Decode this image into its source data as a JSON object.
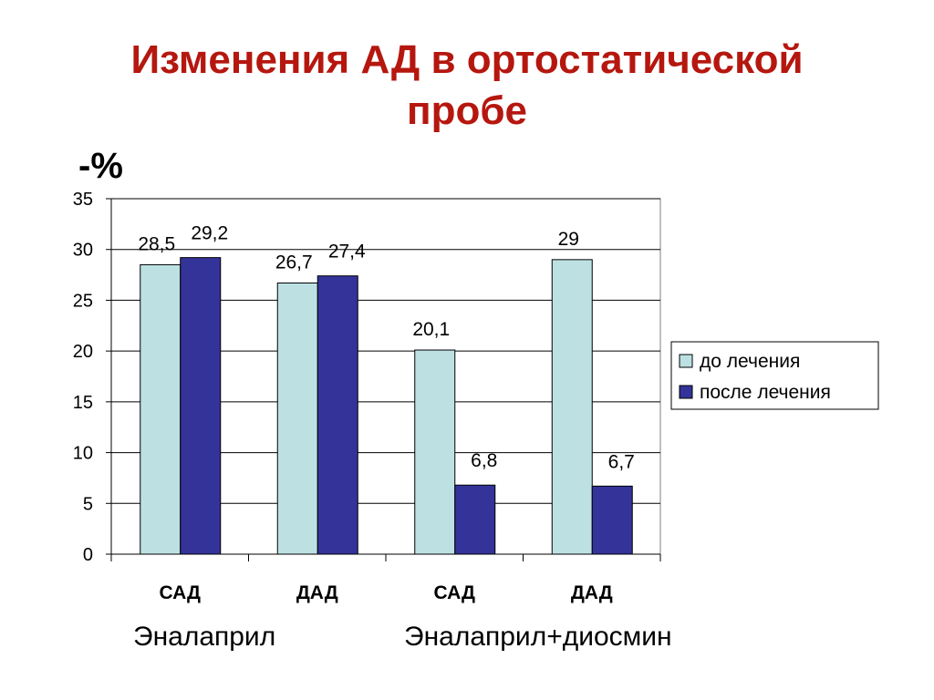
{
  "title": {
    "line1": "Изменения АД в ортостатической",
    "line2": "пробе"
  },
  "unit_label": "-%",
  "chart_data": {
    "type": "bar",
    "categories": [
      "САД",
      "ДАД",
      "САД",
      "ДАД"
    ],
    "groups": [
      {
        "label": "Эналаприл",
        "categories": [
          "САД",
          "ДАД"
        ]
      },
      {
        "label": "Эналаприл+диосмин",
        "categories": [
          "САД",
          "ДАД"
        ]
      }
    ],
    "series": [
      {
        "name": "до лечения",
        "values": [
          28.5,
          26.7,
          20.1,
          29
        ],
        "labels": [
          "28,5",
          "26,7",
          "20,1",
          "29"
        ],
        "color": "#bde1e3"
      },
      {
        "name": "после лечения",
        "values": [
          29.2,
          27.4,
          6.8,
          6.7
        ],
        "labels": [
          "29,2",
          "27,4",
          "6,8",
          "6,7"
        ],
        "color": "#333399"
      }
    ],
    "ylim": [
      0,
      35
    ],
    "yticks": [
      "0",
      "5",
      "10",
      "15",
      "20",
      "25",
      "30",
      "35"
    ],
    "ytick_values": [
      0,
      5,
      10,
      15,
      20,
      25,
      30,
      35
    ],
    "grid": true,
    "legend_position": "right"
  }
}
